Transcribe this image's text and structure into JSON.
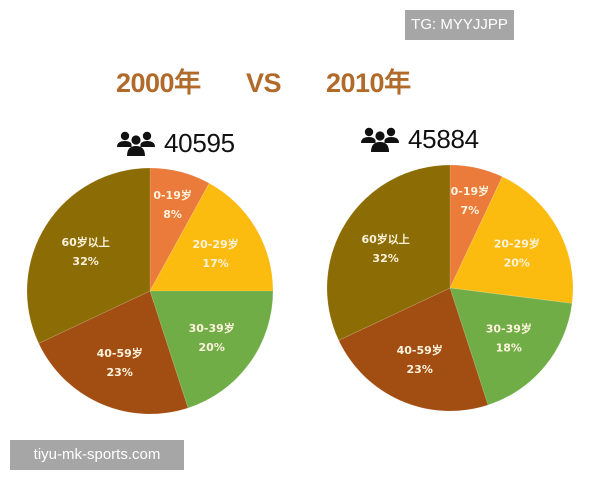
{
  "watermarks": {
    "top": "TG: MYYJJPP",
    "bottom": "tiyu-mk-sports.com"
  },
  "header": {
    "left_year": "2000年",
    "vs": "VS",
    "right_year": "2010年"
  },
  "population": {
    "left": {
      "icon": "people-group-icon",
      "value": "40595"
    },
    "right": {
      "icon": "people-group-icon",
      "value": "45884"
    }
  },
  "colors": {
    "title": "#b06a2a",
    "age_0_19": "#ea7b3b",
    "age_20_29": "#fcbb0f",
    "age_30_39": "#70ad47",
    "age_40_59": "#a24e13",
    "age_60_plus": "#8c6d05",
    "label_text": "#fdf3dc"
  },
  "chart_data": [
    {
      "type": "pie",
      "title": "2000年",
      "total_population": 40595,
      "start_angle": "12 o'clock, clockwise",
      "categories": [
        "0-19岁",
        "20-29岁",
        "30-39岁",
        "40-59岁",
        "60岁以上"
      ],
      "values": [
        8,
        17,
        20,
        23,
        32
      ],
      "labels": [
        "8%",
        "17%",
        "20%",
        "23%",
        "32%"
      ],
      "colors": [
        "#ea7b3b",
        "#fcbb0f",
        "#70ad47",
        "#a24e13",
        "#8c6d05"
      ],
      "center": [
        150,
        291
      ],
      "radius": 123
    },
    {
      "type": "pie",
      "title": "2010年",
      "total_population": 45884,
      "start_angle": "12 o'clock, clockwise",
      "categories": [
        "0-19岁",
        "20-29岁",
        "30-39岁",
        "40-59岁",
        "60岁以上"
      ],
      "values": [
        7,
        20,
        18,
        23,
        32
      ],
      "labels": [
        "7%",
        "20%",
        "18%",
        "23%",
        "32%"
      ],
      "colors": [
        "#ea7b3b",
        "#fcbb0f",
        "#70ad47",
        "#a24e13",
        "#8c6d05"
      ],
      "center": [
        450,
        288
      ],
      "radius": 123
    }
  ]
}
